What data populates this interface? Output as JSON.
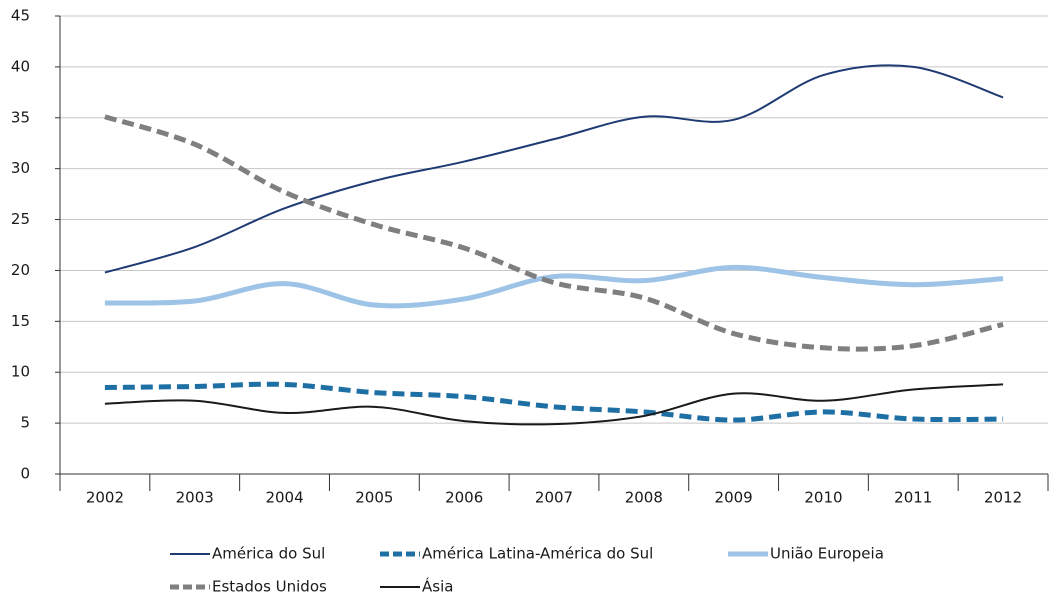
{
  "chart_data": {
    "type": "line",
    "smooth": true,
    "categories": [
      "2002",
      "2003",
      "2004",
      "2005",
      "2006",
      "2007",
      "2008",
      "2009",
      "2010",
      "2011",
      "2012"
    ],
    "series": [
      {
        "name": "América do Sul",
        "color": "#1f3b73",
        "width": 2,
        "dashed": false,
        "values": [
          19.8,
          22.3,
          26.1,
          28.8,
          30.7,
          32.9,
          35.1,
          34.8,
          39.2,
          40.0,
          37.0
        ]
      },
      {
        "name": "América Latina-América do Sul",
        "color": "#1e6fa3",
        "width": 5,
        "dashed": true,
        "values": [
          8.5,
          8.6,
          8.8,
          8.0,
          7.6,
          6.6,
          6.1,
          5.3,
          6.1,
          5.4,
          5.4
        ]
      },
      {
        "name": "União Europeia",
        "color": "#9dc3e6",
        "width": 5,
        "dashed": false,
        "values": [
          16.8,
          17.0,
          18.7,
          16.6,
          17.2,
          19.4,
          19.0,
          20.3,
          19.3,
          18.6,
          19.2
        ]
      },
      {
        "name": "Estados Unidos",
        "color": "#7f7f7f",
        "width": 5,
        "dashed": true,
        "values": [
          35.1,
          32.4,
          27.7,
          24.5,
          22.2,
          18.8,
          17.3,
          13.8,
          12.4,
          12.6,
          14.7
        ]
      },
      {
        "name": "Ásia",
        "color": "#1a1a1a",
        "width": 2,
        "dashed": false,
        "values": [
          6.9,
          7.2,
          6.0,
          6.6,
          5.2,
          4.9,
          5.7,
          7.9,
          7.2,
          8.3,
          8.8
        ]
      }
    ],
    "ylim": [
      0,
      45
    ],
    "yticks": [
      0,
      5,
      10,
      15,
      20,
      25,
      30,
      35,
      40,
      45
    ],
    "grid": true,
    "legend": "bottom"
  }
}
